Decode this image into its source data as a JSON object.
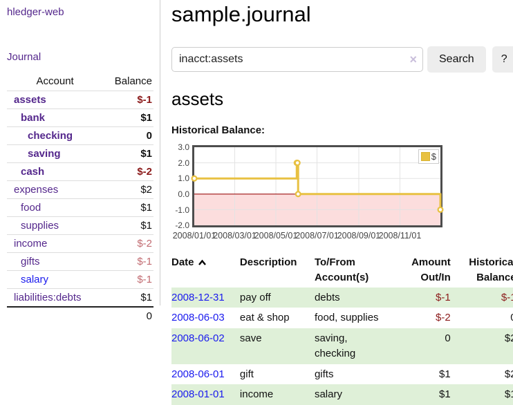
{
  "app": {
    "title": "hledger-web"
  },
  "nav": {
    "journal": "Journal"
  },
  "sidebar": {
    "header": {
      "account": "Account",
      "balance": "Balance"
    },
    "accounts": [
      {
        "name": "assets",
        "balance": "$-1"
      },
      {
        "name": "bank",
        "balance": "$1"
      },
      {
        "name": "checking",
        "balance": "0"
      },
      {
        "name": "saving",
        "balance": "$1"
      },
      {
        "name": "cash",
        "balance": "$-2"
      },
      {
        "name": "expenses",
        "balance": "$2"
      },
      {
        "name": "food",
        "balance": "$1"
      },
      {
        "name": "supplies",
        "balance": "$1"
      },
      {
        "name": "income",
        "balance": "$-2"
      },
      {
        "name": "gifts",
        "balance": "$-1"
      },
      {
        "name": "salary",
        "balance": "$-1"
      },
      {
        "name": "liabilities:debts",
        "balance": "$1"
      }
    ],
    "total": "0"
  },
  "header": {
    "title": "sample.journal"
  },
  "search": {
    "value": "inacct:assets",
    "clear_icon": "×",
    "search_button": "Search",
    "help_button": "?"
  },
  "account_view": {
    "heading": "assets",
    "section_label": "Historical Balance:"
  },
  "chart_data": {
    "type": "line",
    "title": "Historical Balance:",
    "legend": {
      "label": "$",
      "position": "top-right"
    },
    "x_range": [
      "2008-01-01",
      "2008-12-31"
    ],
    "ylim": [
      -2,
      3
    ],
    "y_ticks": [
      3.0,
      2.0,
      1.0,
      0.0,
      -1.0,
      -2.0
    ],
    "x_ticks": [
      "2008/01/01",
      "2008/03/01",
      "2008/05/01",
      "2008/07/01",
      "2008/09/01",
      "2008/11/01"
    ],
    "grid": true,
    "series": [
      {
        "name": "$",
        "color": "#e8c142",
        "steps": true,
        "points": [
          {
            "x": "2008-01-01",
            "y": 1
          },
          {
            "x": "2008-06-01",
            "y": 2
          },
          {
            "x": "2008-06-02",
            "y": 2
          },
          {
            "x": "2008-06-03",
            "y": 0
          },
          {
            "x": "2008-12-31",
            "y": -1
          }
        ]
      }
    ],
    "negative_region_fill": "#fcdddd",
    "zero_line_color": "#9c0f0f"
  },
  "register": {
    "headers": {
      "date": "Date",
      "description": "Description",
      "accounts": "To/From Account(s)",
      "amount": "Amount Out/In",
      "balance": "Historical Balance"
    },
    "sort": {
      "column": "date",
      "direction": "ascending"
    },
    "rows": [
      {
        "date": "2008-12-31",
        "description": "pay off",
        "accounts": "debts",
        "amount": "$-1",
        "balance": "$-1"
      },
      {
        "date": "2008-06-03",
        "description": "eat & shop",
        "accounts": "food, supplies",
        "amount": "$-2",
        "balance": "0"
      },
      {
        "date": "2008-06-02",
        "description": "save",
        "accounts": "saving, checking",
        "amount": "0",
        "balance": "$2"
      },
      {
        "date": "2008-06-01",
        "description": "gift",
        "accounts": "gifts",
        "amount": "$1",
        "balance": "$2"
      },
      {
        "date": "2008-01-01",
        "description": "income",
        "accounts": "salary",
        "amount": "$1",
        "balance": "$1"
      }
    ]
  },
  "colors": {
    "link_purple": "#54278c",
    "link_blue": "#1a1aee",
    "negative": "#8b1a1a",
    "negative_muted": "#c26c72",
    "row_highlight_green": "#dff0d8",
    "chart_line_gold": "#e8c142",
    "negative_region_pink": "#fcdddd",
    "zero_line_red": "#9c0f0f"
  }
}
